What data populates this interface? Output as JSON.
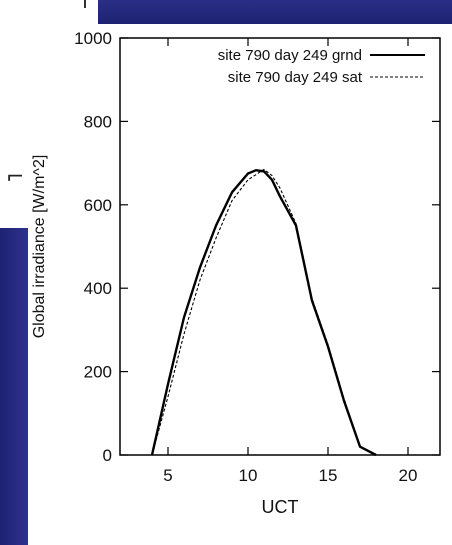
{
  "chart_data": {
    "type": "line",
    "title": "",
    "xlabel": "UCT",
    "ylabel": "Global irradiance [W/m^2]",
    "xlim": [
      2,
      22
    ],
    "ylim": [
      0,
      1000
    ],
    "xticks": [
      5,
      10,
      15,
      20
    ],
    "yticks": [
      0,
      200,
      400,
      600,
      800,
      1000
    ],
    "grid": false,
    "legend_position": "top-right",
    "series": [
      {
        "name": "site 790 day 249 grnd",
        "style": "solid",
        "color": "#000000",
        "x": [
          4.0,
          5.0,
          6.0,
          7.0,
          8.0,
          9.0,
          10.0,
          10.5,
          11.0,
          11.5,
          12.0,
          13.0,
          14.0,
          15.0,
          16.0,
          17.0,
          18.0
        ],
        "y": [
          0,
          170,
          330,
          450,
          550,
          630,
          675,
          683,
          680,
          660,
          620,
          550,
          370,
          260,
          130,
          20,
          0
        ]
      },
      {
        "name": "site 790 day 249 sat",
        "style": "dashed",
        "color": "#000000",
        "x": [
          4.0,
          5.0,
          6.0,
          7.0,
          8.0,
          9.0,
          10.0,
          11.0,
          11.5,
          12.0,
          13.0,
          14.0,
          15.0,
          16.0,
          17.0,
          18.0
        ],
        "y": [
          0,
          140,
          290,
          420,
          520,
          610,
          660,
          685,
          670,
          640,
          555,
          375,
          265,
          135,
          20,
          0
        ]
      }
    ]
  }
}
